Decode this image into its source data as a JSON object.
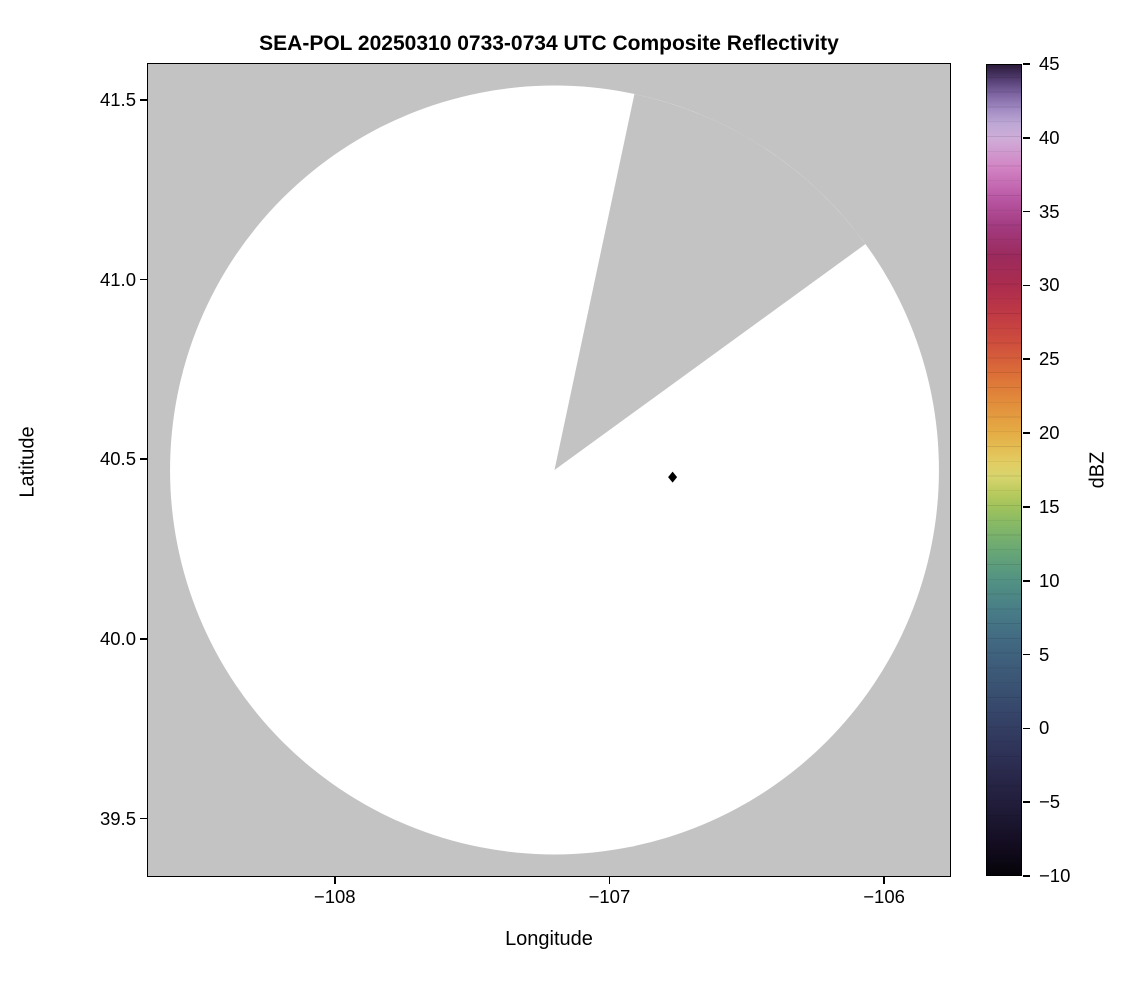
{
  "figure": {
    "title": "SEA-POL 20250310 0733-0734 UTC Composite Reflectivity",
    "xlabel": "Longitude",
    "ylabel": "Latitude"
  },
  "axes": {
    "xlim": [
      -108.68,
      -105.76
    ],
    "ylim": [
      39.34,
      41.6
    ],
    "xticks": [
      {
        "value": -108,
        "label": "−108"
      },
      {
        "value": -107,
        "label": "−107"
      },
      {
        "value": -106,
        "label": "−106"
      }
    ],
    "yticks": [
      {
        "value": 39.5,
        "label": "39.5"
      },
      {
        "value": 40.0,
        "label": "40.0"
      },
      {
        "value": 40.5,
        "label": "40.5"
      },
      {
        "value": 41.0,
        "label": "41.0"
      },
      {
        "value": 41.5,
        "label": "41.5"
      }
    ]
  },
  "colorbar": {
    "label": "dBZ",
    "min": -10,
    "max": 45,
    "ticks": [
      {
        "value": -10,
        "label": "−10"
      },
      {
        "value": -5,
        "label": "−5"
      },
      {
        "value": 0,
        "label": "0"
      },
      {
        "value": 5,
        "label": "5"
      },
      {
        "value": 10,
        "label": "10"
      },
      {
        "value": 15,
        "label": "15"
      },
      {
        "value": 20,
        "label": "20"
      },
      {
        "value": 25,
        "label": "25"
      },
      {
        "value": 30,
        "label": "30"
      },
      {
        "value": 35,
        "label": "35"
      },
      {
        "value": 40,
        "label": "40"
      },
      {
        "value": 45,
        "label": "45"
      }
    ],
    "stops": [
      {
        "p": 0.0,
        "c": "#060409"
      },
      {
        "p": 0.036,
        "c": "#130c20"
      },
      {
        "p": 0.073,
        "c": "#1d1833"
      },
      {
        "p": 0.109,
        "c": "#262344"
      },
      {
        "p": 0.145,
        "c": "#2d3054"
      },
      {
        "p": 0.182,
        "c": "#333e63"
      },
      {
        "p": 0.218,
        "c": "#384d6f"
      },
      {
        "p": 0.255,
        "c": "#3d5b79"
      },
      {
        "p": 0.291,
        "c": "#426a82"
      },
      {
        "p": 0.327,
        "c": "#487d87"
      },
      {
        "p": 0.364,
        "c": "#529283"
      },
      {
        "p": 0.4,
        "c": "#68a775"
      },
      {
        "p": 0.436,
        "c": "#8aba64"
      },
      {
        "p": 0.455,
        "c": "#a1c35c"
      },
      {
        "p": 0.473,
        "c": "#bbcb5e"
      },
      {
        "p": 0.491,
        "c": "#d7d46d"
      },
      {
        "p": 0.509,
        "c": "#e2cd62"
      },
      {
        "p": 0.545,
        "c": "#e5ad45"
      },
      {
        "p": 0.582,
        "c": "#e28e3b"
      },
      {
        "p": 0.618,
        "c": "#dc6f38"
      },
      {
        "p": 0.655,
        "c": "#cf4f3d"
      },
      {
        "p": 0.691,
        "c": "#c03a44"
      },
      {
        "p": 0.727,
        "c": "#ac2c4e"
      },
      {
        "p": 0.764,
        "c": "#9b2b5d"
      },
      {
        "p": 0.8,
        "c": "#a23a7f"
      },
      {
        "p": 0.836,
        "c": "#ba58a5"
      },
      {
        "p": 0.873,
        "c": "#d283c4"
      },
      {
        "p": 0.909,
        "c": "#cfadd8"
      },
      {
        "p": 0.927,
        "c": "#bea8d5"
      },
      {
        "p": 0.945,
        "c": "#a28bc2"
      },
      {
        "p": 0.964,
        "c": "#7e65a2"
      },
      {
        "p": 0.982,
        "c": "#543e72"
      },
      {
        "p": 1.0,
        "c": "#2b1b3b"
      }
    ]
  },
  "chart_data": {
    "type": "heatmap",
    "subtype": "radar-composite-reflectivity-ppi",
    "title": "SEA-POL 20250310 0733-0734 UTC Composite Reflectivity",
    "xlabel": "Longitude",
    "ylabel": "Latitude",
    "xlim": [
      -108.68,
      -105.76
    ],
    "ylim": [
      39.34,
      41.6
    ],
    "grid": false,
    "legend_position": "none",
    "colorbar_label": "dBZ",
    "colorbar_range": [
      -10,
      45
    ],
    "colorbar_tick_step": 5,
    "background_color": "#c3c3c3",
    "radar": {
      "center_lon": -107.2,
      "center_lat": 40.47,
      "radius_deg_lat": 1.07,
      "coverage_fill": "#ffffff",
      "coverage_note": "white disc = scanned area with reflectivity below display threshold / no echo"
    },
    "blocked_sector": {
      "azimuth_start_deg": 12,
      "azimuth_end_deg": 54,
      "fill": "#c3c3c3",
      "note": "gray wedge of missing data from radar center toward NNE"
    },
    "echoes": [
      {
        "lon": -106.77,
        "lat": 40.45,
        "dbz": 45,
        "marker": "diamond",
        "color": "#000000"
      }
    ]
  }
}
